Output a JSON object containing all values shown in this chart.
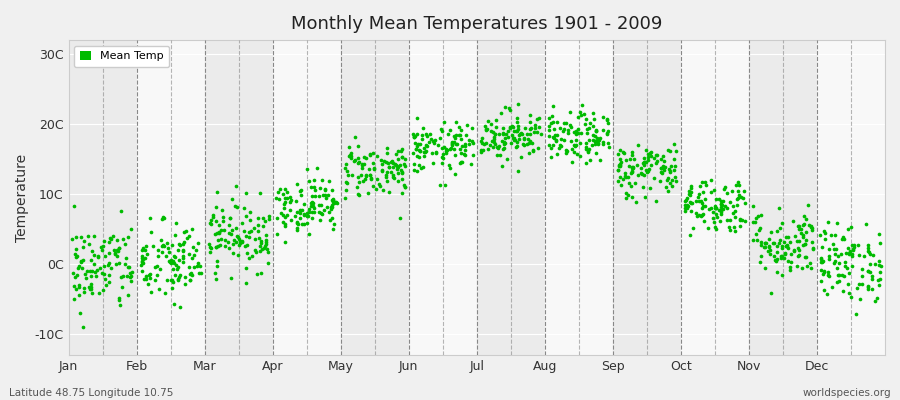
{
  "title": "Monthly Mean Temperatures 1901 - 2009",
  "ylabel": "Temperature",
  "xlabel_labels": [
    "Jan",
    "Feb",
    "Mar",
    "Apr",
    "May",
    "Jun",
    "Jul",
    "Aug",
    "Sep",
    "Oct",
    "Nov",
    "Dec"
  ],
  "ytick_labels": [
    "-10C",
    "0C",
    "10C",
    "20C",
    "30C"
  ],
  "ytick_values": [
    -10,
    0,
    10,
    20,
    30
  ],
  "ylim": [
    -13,
    32
  ],
  "dot_color": "#00bb00",
  "dot_size": 7,
  "legend_label": "Mean Temp",
  "footer_left": "Latitude 48.75 Longitude 10.75",
  "footer_right": "worldspecies.org",
  "bg_light": "#ebebeb",
  "bg_dark": "#f8f8f8",
  "mean_temps": [
    -0.5,
    0.2,
    4.2,
    8.5,
    13.5,
    16.5,
    18.5,
    18.0,
    13.5,
    8.5,
    3.0,
    0.2
  ],
  "std_temps": [
    3.2,
    3.0,
    2.5,
    2.0,
    2.0,
    1.8,
    1.8,
    1.8,
    2.0,
    2.0,
    2.5,
    2.8
  ],
  "n_years": 109,
  "seed": 42,
  "vline_color": "#888888",
  "grid_color": "#ffffff",
  "spine_color": "#cccccc",
  "xlabel_at_left": true
}
